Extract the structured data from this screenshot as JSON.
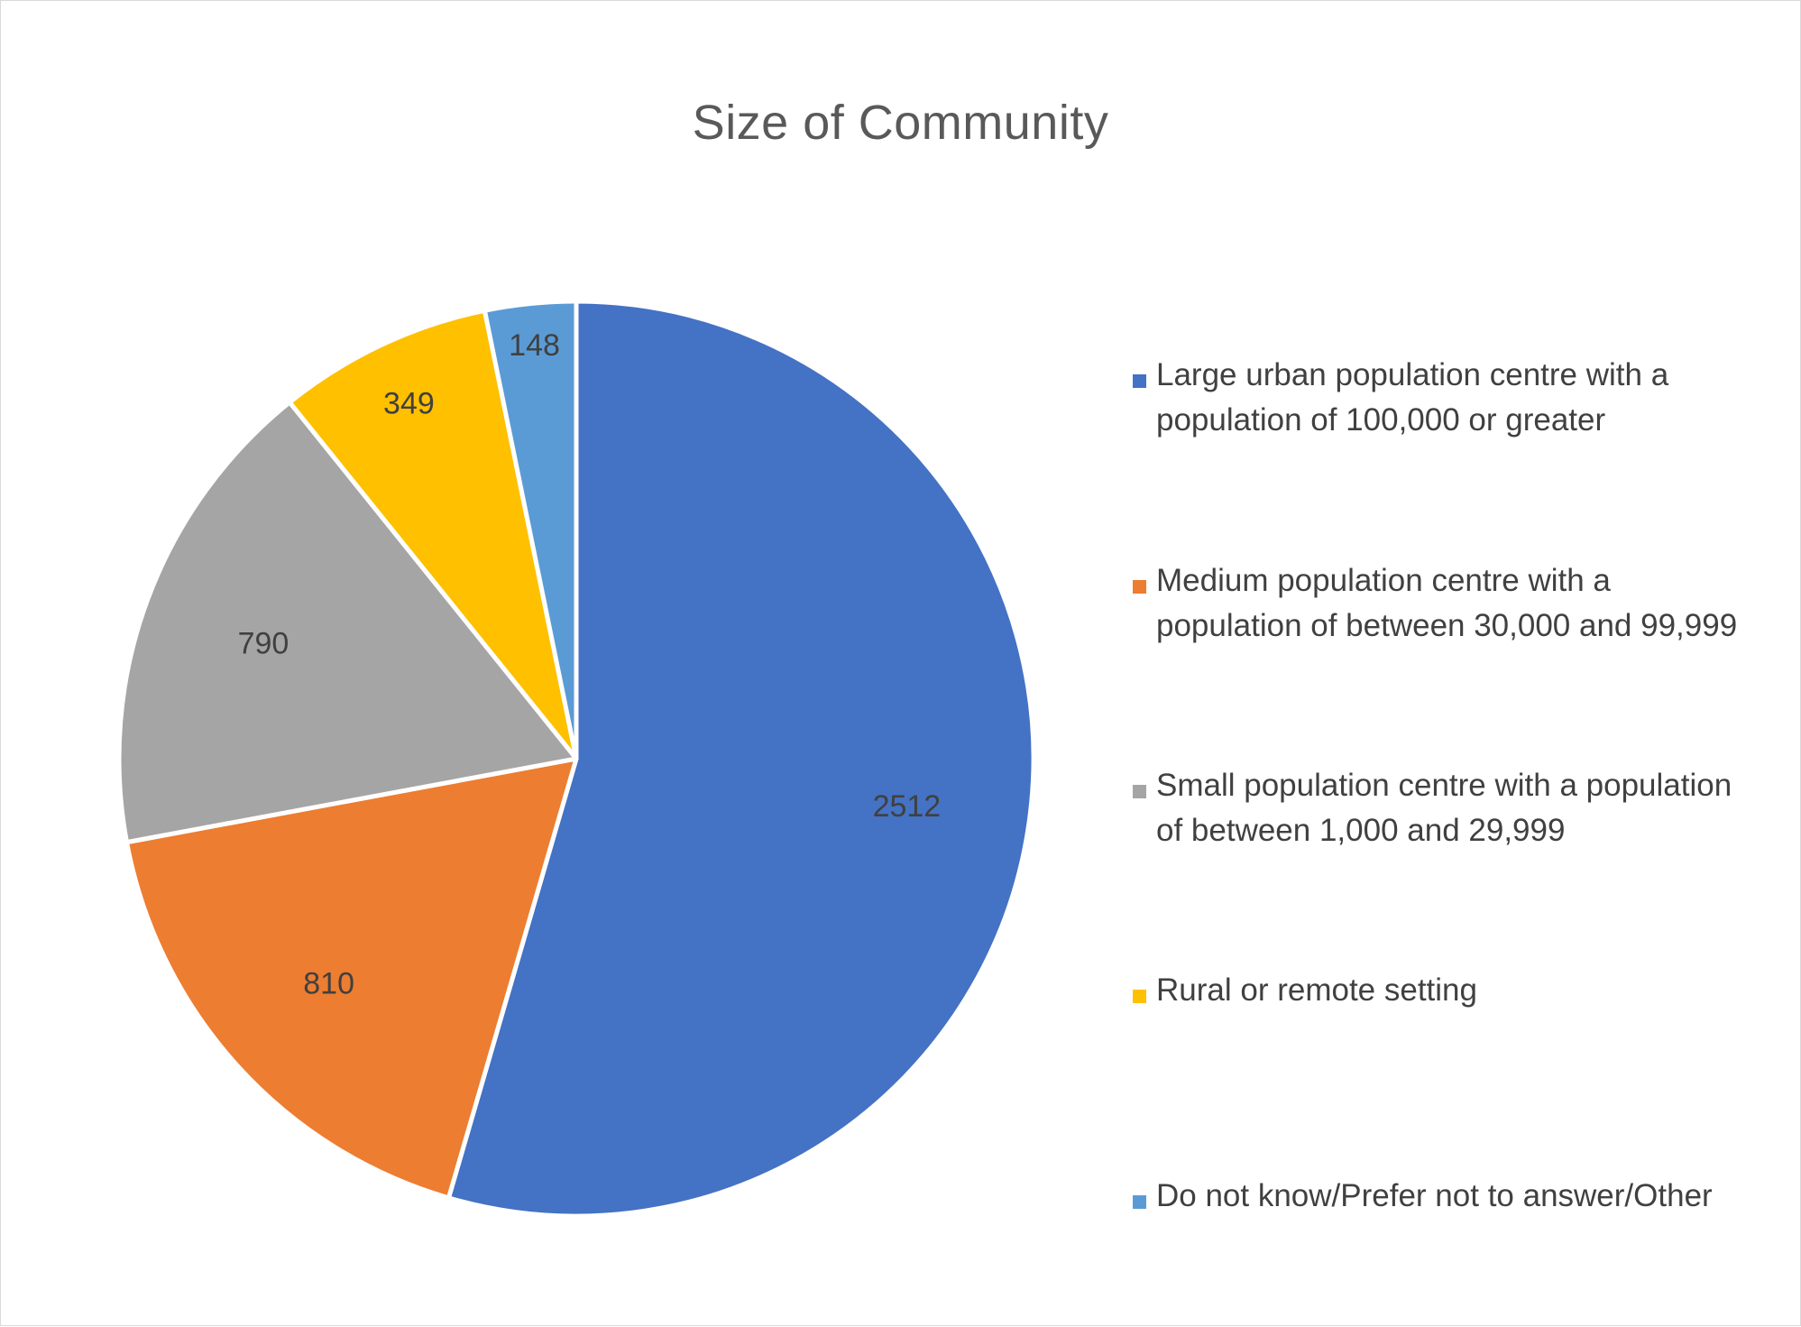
{
  "chart_data": {
    "type": "pie",
    "title": "Size of Community",
    "start_angle_deg": 0,
    "direction": "clockwise",
    "legend_position": "right",
    "categories": [
      "Large urban population centre with a population of 100,000 or greater",
      "Medium population centre with a population of between 30,000 and 99,999",
      "Small population centre with a population of between 1,000 and 29,999",
      "Rural or remote setting",
      "Do not know/Prefer not to answer/Other"
    ],
    "values": [
      2512,
      810,
      790,
      349,
      148
    ],
    "colors": [
      "#4472C4",
      "#ED7D31",
      "#A5A5A5",
      "#FFC000",
      "#5B9BD5"
    ]
  },
  "legend": {
    "items": [
      {
        "line1": "Large urban population centre with a",
        "line2": "population of 100,000 or greater"
      },
      {
        "line1": "Medium population centre with a",
        "line2": "population of between 30,000 and 99,999"
      },
      {
        "line1": "Small population centre with a population",
        "line2": "of between 1,000 and 29,999"
      },
      {
        "line1": "Rural or remote setting",
        "line2": ""
      },
      {
        "line1": "Do not know/Prefer not to answer/Other",
        "line2": ""
      }
    ]
  }
}
